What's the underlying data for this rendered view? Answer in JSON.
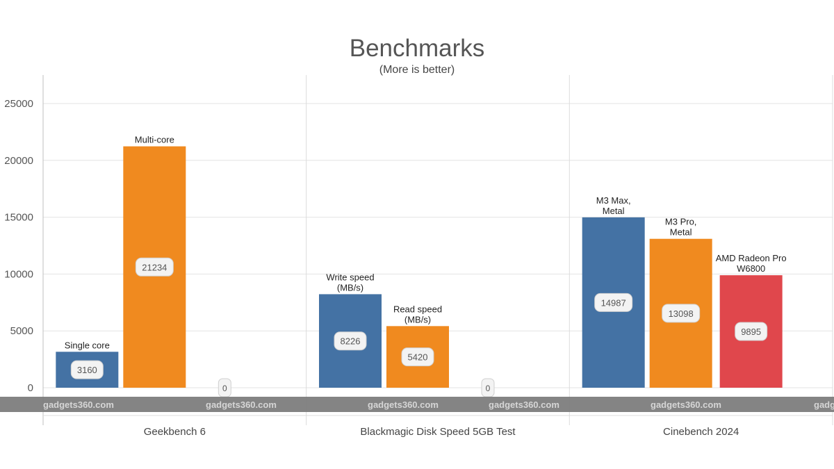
{
  "chart_data": {
    "type": "bar",
    "title": "Benchmarks",
    "subtitle": "(More is better)",
    "xlabel": "",
    "ylabel": "",
    "ylim": [
      0,
      27500
    ],
    "yticks": [
      0,
      5000,
      10000,
      15000,
      20000,
      25000
    ],
    "grid": true,
    "legend": "none",
    "groups": [
      {
        "category": "Geekbench 6",
        "bars": [
          {
            "label": "Single core",
            "value": 3160,
            "value_label": "3160",
            "color": "#4472a4"
          },
          {
            "label": "Multi-core",
            "value": 21234,
            "value_label": "21234",
            "color": "#f08a1f"
          },
          {
            "label": "",
            "value": 0,
            "value_label": "0",
            "color": "#e0474c"
          }
        ]
      },
      {
        "category": "Blackmagic Disk Speed 5GB Test",
        "bars": [
          {
            "label": "Write speed\n(MB/s)",
            "value": 8226,
            "value_label": "8226",
            "color": "#4472a4"
          },
          {
            "label": "Read speed\n(MB/s)",
            "value": 5420,
            "value_label": "5420",
            "color": "#f08a1f"
          },
          {
            "label": "",
            "value": 0,
            "value_label": "0",
            "color": "#e0474c"
          }
        ]
      },
      {
        "category": "Cinebench 2024",
        "bars": [
          {
            "label": "M3 Max,\nMetal",
            "value": 14987,
            "value_label": "14987",
            "color": "#4472a4"
          },
          {
            "label": "M3 Pro,\nMetal",
            "value": 13098,
            "value_label": "13098",
            "color": "#f08a1f"
          },
          {
            "label": "AMD Radeon Pro\nW6800",
            "value": 9895,
            "value_label": "9895",
            "color": "#e0474c"
          }
        ]
      }
    ]
  },
  "watermark": {
    "text": "gadgets360.com",
    "band_color": "#7a7a7a"
  }
}
